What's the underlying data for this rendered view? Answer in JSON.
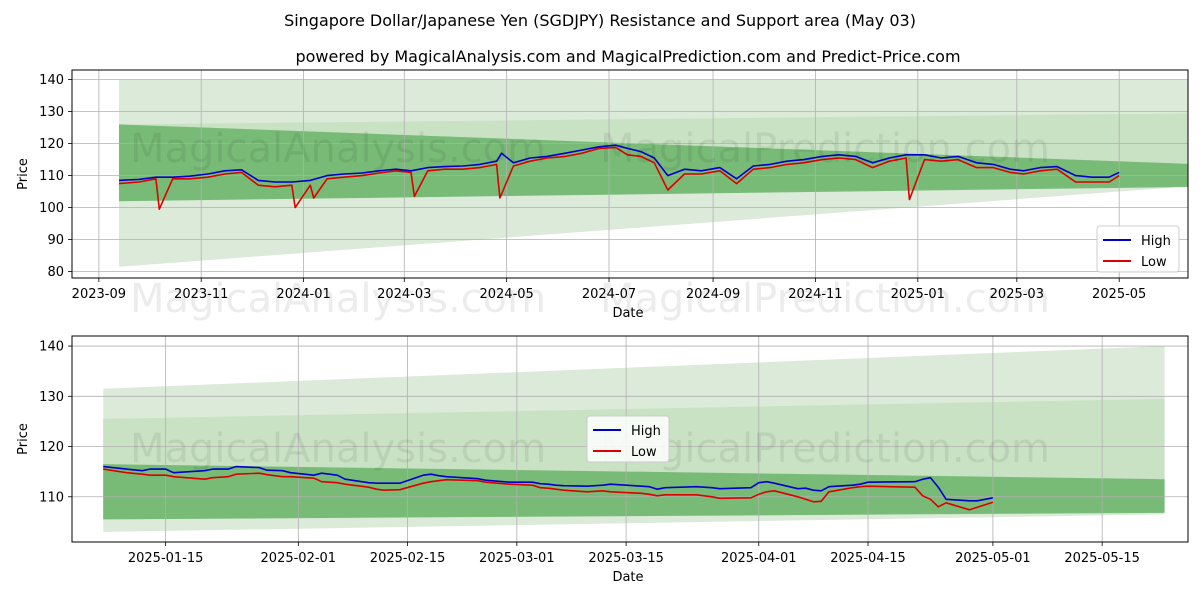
{
  "title": "Singapore Dollar/Japanese Yen (SGDJPY) Resistance and Support area (May 03)",
  "subtitle": "powered by MagicalAnalysis.com and MagicalPrediction.com and Predict-Price.com",
  "watermarks": [
    "MagicalAnalysis.com",
    "MagicalPrediction.com"
  ],
  "colors": {
    "high": "#0000cc",
    "low": "#dd0000",
    "band_light": "#dcebd9",
    "band_mid": "#c9e2c4",
    "band_dark": "#6ab46a"
  },
  "chart_data": [
    {
      "type": "line",
      "xlabel": "Date",
      "ylabel": "Price",
      "x_ticks": [
        "2023-09",
        "2023-11",
        "2024-01",
        "2024-03",
        "2024-05",
        "2024-07",
        "2024-09",
        "2024-11",
        "2025-01",
        "2025-03",
        "2025-05"
      ],
      "y_ticks": [
        80,
        90,
        100,
        110,
        120,
        130,
        140
      ],
      "ylim": [
        78,
        143
      ],
      "xlim": [
        "2023-08-16",
        "2025-06-11"
      ],
      "grid": true,
      "legend": {
        "position": "lower-right",
        "entries": [
          "High",
          "Low"
        ]
      },
      "bands": [
        {
          "name": "outer",
          "start": "2023-09-13",
          "end": "2025-06-20",
          "upper": [
            140,
            140
          ],
          "lower": [
            81.5,
            107
          ]
        },
        {
          "name": "middle",
          "start": "2023-09-13",
          "end": "2025-06-20",
          "upper": [
            126,
            129.5
          ],
          "lower": [
            102,
            107
          ]
        },
        {
          "name": "inner",
          "start": "2023-09-13",
          "end": "2025-06-20",
          "upper": [
            126,
            113.5
          ],
          "lower": [
            102,
            106.5
          ]
        }
      ],
      "series": [
        {
          "name": "High",
          "x": [
            "2023-09-13",
            "2023-09-25",
            "2023-10-05",
            "2023-10-15",
            "2023-10-25",
            "2023-11-05",
            "2023-11-15",
            "2023-11-25",
            "2023-12-05",
            "2023-12-15",
            "2023-12-25",
            "2024-01-05",
            "2024-01-15",
            "2024-01-25",
            "2024-02-05",
            "2024-02-15",
            "2024-02-25",
            "2024-03-05",
            "2024-03-15",
            "2024-03-25",
            "2024-04-05",
            "2024-04-15",
            "2024-04-25",
            "2024-04-28",
            "2024-05-05",
            "2024-05-15",
            "2024-05-25",
            "2024-06-05",
            "2024-06-15",
            "2024-06-25",
            "2024-07-05",
            "2024-07-12",
            "2024-07-20",
            "2024-07-28",
            "2024-08-05",
            "2024-08-15",
            "2024-08-25",
            "2024-09-05",
            "2024-09-15",
            "2024-09-25",
            "2024-10-05",
            "2024-10-15",
            "2024-10-25",
            "2024-11-05",
            "2024-11-15",
            "2024-11-25",
            "2024-12-05",
            "2024-12-15",
            "2024-12-25",
            "2025-01-05",
            "2025-01-15",
            "2025-01-25",
            "2025-02-05",
            "2025-02-15",
            "2025-02-25",
            "2025-03-05",
            "2025-03-15",
            "2025-03-25",
            "2025-04-05",
            "2025-04-15",
            "2025-04-25",
            "2025-05-01"
          ],
          "values": [
            108.5,
            108.8,
            109.5,
            109.5,
            109.8,
            110.5,
            111.5,
            111.8,
            108.5,
            108.0,
            108.0,
            108.5,
            110.0,
            110.5,
            110.8,
            111.5,
            112.0,
            111.5,
            112.5,
            112.8,
            113.0,
            113.5,
            114.5,
            117.0,
            114.0,
            115.5,
            116.0,
            117.0,
            118.0,
            119.0,
            119.5,
            118.5,
            117.5,
            115.5,
            110.0,
            112.0,
            111.5,
            112.5,
            109.0,
            113.0,
            113.5,
            114.5,
            115.0,
            116.0,
            116.5,
            116.0,
            114.0,
            115.5,
            116.5,
            116.5,
            115.5,
            116.0,
            114.0,
            113.5,
            112.0,
            111.5,
            112.5,
            112.8,
            110.0,
            109.5,
            109.5,
            111.0
          ]
        },
        {
          "name": "Low",
          "x": [
            "2023-09-13",
            "2023-09-25",
            "2023-10-05",
            "2023-10-07",
            "2023-10-15",
            "2023-10-25",
            "2023-11-05",
            "2023-11-15",
            "2023-11-25",
            "2023-12-05",
            "2023-12-15",
            "2023-12-25",
            "2023-12-27",
            "2024-01-05",
            "2024-01-07",
            "2024-01-15",
            "2024-01-25",
            "2024-02-05",
            "2024-02-15",
            "2024-02-25",
            "2024-03-05",
            "2024-03-07",
            "2024-03-15",
            "2024-03-25",
            "2024-04-05",
            "2024-04-15",
            "2024-04-25",
            "2024-04-27",
            "2024-05-05",
            "2024-05-15",
            "2024-05-25",
            "2024-06-05",
            "2024-06-15",
            "2024-06-25",
            "2024-07-05",
            "2024-07-12",
            "2024-07-20",
            "2024-07-28",
            "2024-08-05",
            "2024-08-15",
            "2024-08-25",
            "2024-09-05",
            "2024-09-15",
            "2024-09-25",
            "2024-10-05",
            "2024-10-15",
            "2024-10-25",
            "2024-11-05",
            "2024-11-15",
            "2024-11-25",
            "2024-12-05",
            "2024-12-15",
            "2024-12-25",
            "2024-12-27",
            "2025-01-05",
            "2025-01-15",
            "2025-01-25",
            "2025-02-05",
            "2025-02-15",
            "2025-02-25",
            "2025-03-05",
            "2025-03-15",
            "2025-03-25",
            "2025-04-05",
            "2025-04-15",
            "2025-04-25",
            "2025-05-01"
          ],
          "values": [
            107.5,
            108.0,
            109.0,
            99.5,
            109.0,
            109.0,
            109.5,
            110.5,
            111.0,
            107.0,
            106.5,
            107.0,
            100.0,
            107.0,
            103.0,
            109.0,
            109.5,
            110.0,
            110.8,
            111.5,
            111.0,
            103.5,
            111.5,
            112.0,
            112.0,
            112.5,
            113.5,
            103.0,
            113.0,
            114.5,
            115.5,
            116.0,
            117.0,
            118.5,
            118.8,
            116.5,
            116.0,
            114.0,
            105.5,
            110.5,
            110.5,
            111.5,
            107.5,
            112.0,
            112.5,
            113.5,
            114.0,
            115.0,
            115.5,
            115.0,
            112.5,
            114.5,
            115.5,
            102.5,
            115.0,
            114.5,
            115.0,
            112.5,
            112.5,
            111.0,
            110.5,
            111.5,
            112.0,
            108.0,
            108.0,
            108.0,
            110.0
          ]
        }
      ]
    },
    {
      "type": "line",
      "xlabel": "Date",
      "ylabel": "Price",
      "x_ticks": [
        "2025-01-15",
        "2025-02-01",
        "2025-02-15",
        "2025-03-01",
        "2025-03-15",
        "2025-04-01",
        "2025-04-15",
        "2025-05-01",
        "2025-05-15"
      ],
      "y_ticks": [
        110,
        120,
        130,
        140
      ],
      "ylim": [
        101,
        142
      ],
      "xlim": [
        "2025-01-03",
        "2025-05-26"
      ],
      "grid": true,
      "legend": {
        "position": "upper-center",
        "entries": [
          "High",
          "Low"
        ]
      },
      "bands": [
        {
          "name": "outer",
          "start": "2025-01-07",
          "end": "2025-05-23",
          "upper": [
            131.5,
            140
          ],
          "lower": [
            103,
            106.5
          ]
        },
        {
          "name": "middle",
          "start": "2025-01-07",
          "end": "2025-05-23",
          "upper": [
            125.5,
            129.5
          ],
          "lower": [
            105.5,
            107
          ]
        },
        {
          "name": "inner",
          "start": "2025-01-07",
          "end": "2025-05-23",
          "upper": [
            116.5,
            113.5
          ],
          "lower": [
            105.5,
            106.8
          ]
        }
      ],
      "series": [
        {
          "name": "High",
          "x": [
            "2025-01-07",
            "2025-01-10",
            "2025-01-12",
            "2025-01-13",
            "2025-01-15",
            "2025-01-16",
            "2025-01-20",
            "2025-01-21",
            "2025-01-23",
            "2025-01-24",
            "2025-01-27",
            "2025-01-28",
            "2025-01-30",
            "2025-01-31",
            "2025-02-03",
            "2025-02-04",
            "2025-02-06",
            "2025-02-07",
            "2025-02-10",
            "2025-02-11",
            "2025-02-12",
            "2025-02-14",
            "2025-02-17",
            "2025-02-18",
            "2025-02-19",
            "2025-02-20",
            "2025-02-24",
            "2025-02-25",
            "2025-02-28",
            "2025-03-03",
            "2025-03-04",
            "2025-03-05",
            "2025-03-06",
            "2025-03-07",
            "2025-03-10",
            "2025-03-12",
            "2025-03-13",
            "2025-03-17",
            "2025-03-18",
            "2025-03-19",
            "2025-03-20",
            "2025-03-24",
            "2025-03-26",
            "2025-03-27",
            "2025-03-31",
            "2025-04-01",
            "2025-04-02",
            "2025-04-03",
            "2025-04-06",
            "2025-04-07",
            "2025-04-08",
            "2025-04-09",
            "2025-04-10",
            "2025-04-13",
            "2025-04-14",
            "2025-04-15",
            "2025-04-21",
            "2025-04-22",
            "2025-04-23",
            "2025-04-24",
            "2025-04-25",
            "2025-04-28",
            "2025-04-29",
            "2025-04-30",
            "2025-05-01"
          ],
          "values": [
            116.0,
            115.5,
            115.2,
            115.5,
            115.5,
            114.8,
            115.2,
            115.5,
            115.5,
            116.0,
            115.8,
            115.3,
            115.2,
            114.8,
            114.3,
            114.7,
            114.3,
            113.5,
            112.8,
            112.7,
            112.7,
            112.7,
            114.3,
            114.5,
            114.2,
            114.0,
            113.6,
            113.3,
            112.9,
            112.9,
            112.6,
            112.5,
            112.3,
            112.2,
            112.1,
            112.3,
            112.5,
            112.1,
            112.0,
            111.5,
            111.8,
            112.0,
            111.8,
            111.6,
            111.8,
            112.8,
            113.0,
            112.7,
            111.6,
            111.7,
            111.3,
            111.2,
            112.0,
            112.3,
            112.5,
            112.9,
            113.0,
            113.5,
            113.8,
            111.9,
            109.5,
            109.2,
            109.2,
            109.5,
            109.8
          ]
        },
        {
          "name": "Low",
          "x": [
            "2025-01-07",
            "2025-01-10",
            "2025-01-12",
            "2025-01-13",
            "2025-01-15",
            "2025-01-16",
            "2025-01-20",
            "2025-01-21",
            "2025-01-23",
            "2025-01-24",
            "2025-01-27",
            "2025-01-28",
            "2025-01-30",
            "2025-01-31",
            "2025-02-03",
            "2025-02-04",
            "2025-02-06",
            "2025-02-07",
            "2025-02-10",
            "2025-02-11",
            "2025-02-12",
            "2025-02-14",
            "2025-02-17",
            "2025-02-18",
            "2025-02-19",
            "2025-02-20",
            "2025-02-24",
            "2025-02-25",
            "2025-02-28",
            "2025-03-03",
            "2025-03-04",
            "2025-03-05",
            "2025-03-06",
            "2025-03-07",
            "2025-03-10",
            "2025-03-12",
            "2025-03-13",
            "2025-03-17",
            "2025-03-18",
            "2025-03-19",
            "2025-03-20",
            "2025-03-24",
            "2025-03-26",
            "2025-03-27",
            "2025-03-31",
            "2025-04-01",
            "2025-04-02",
            "2025-04-03",
            "2025-04-06",
            "2025-04-07",
            "2025-04-08",
            "2025-04-09",
            "2025-04-10",
            "2025-04-13",
            "2025-04-14",
            "2025-04-15",
            "2025-04-21",
            "2025-04-22",
            "2025-04-23",
            "2025-04-24",
            "2025-04-25",
            "2025-04-28",
            "2025-04-29",
            "2025-04-30",
            "2025-05-01"
          ],
          "values": [
            115.5,
            114.8,
            114.5,
            114.3,
            114.3,
            114.0,
            113.5,
            113.8,
            114.0,
            114.5,
            114.7,
            114.4,
            114.0,
            114.0,
            113.7,
            113.0,
            112.8,
            112.5,
            111.9,
            111.5,
            111.3,
            111.4,
            112.7,
            113.0,
            113.2,
            113.4,
            113.2,
            112.9,
            112.5,
            112.3,
            111.8,
            111.7,
            111.5,
            111.3,
            111.0,
            111.2,
            111.0,
            110.7,
            110.5,
            110.2,
            110.4,
            110.4,
            110.0,
            109.7,
            109.8,
            110.5,
            111.0,
            111.2,
            110.0,
            109.5,
            109.0,
            109.1,
            111.0,
            111.8,
            112.0,
            112.1,
            111.9,
            110.2,
            109.5,
            108.0,
            108.8,
            107.4,
            107.9,
            108.4,
            108.9
          ]
        }
      ]
    }
  ]
}
